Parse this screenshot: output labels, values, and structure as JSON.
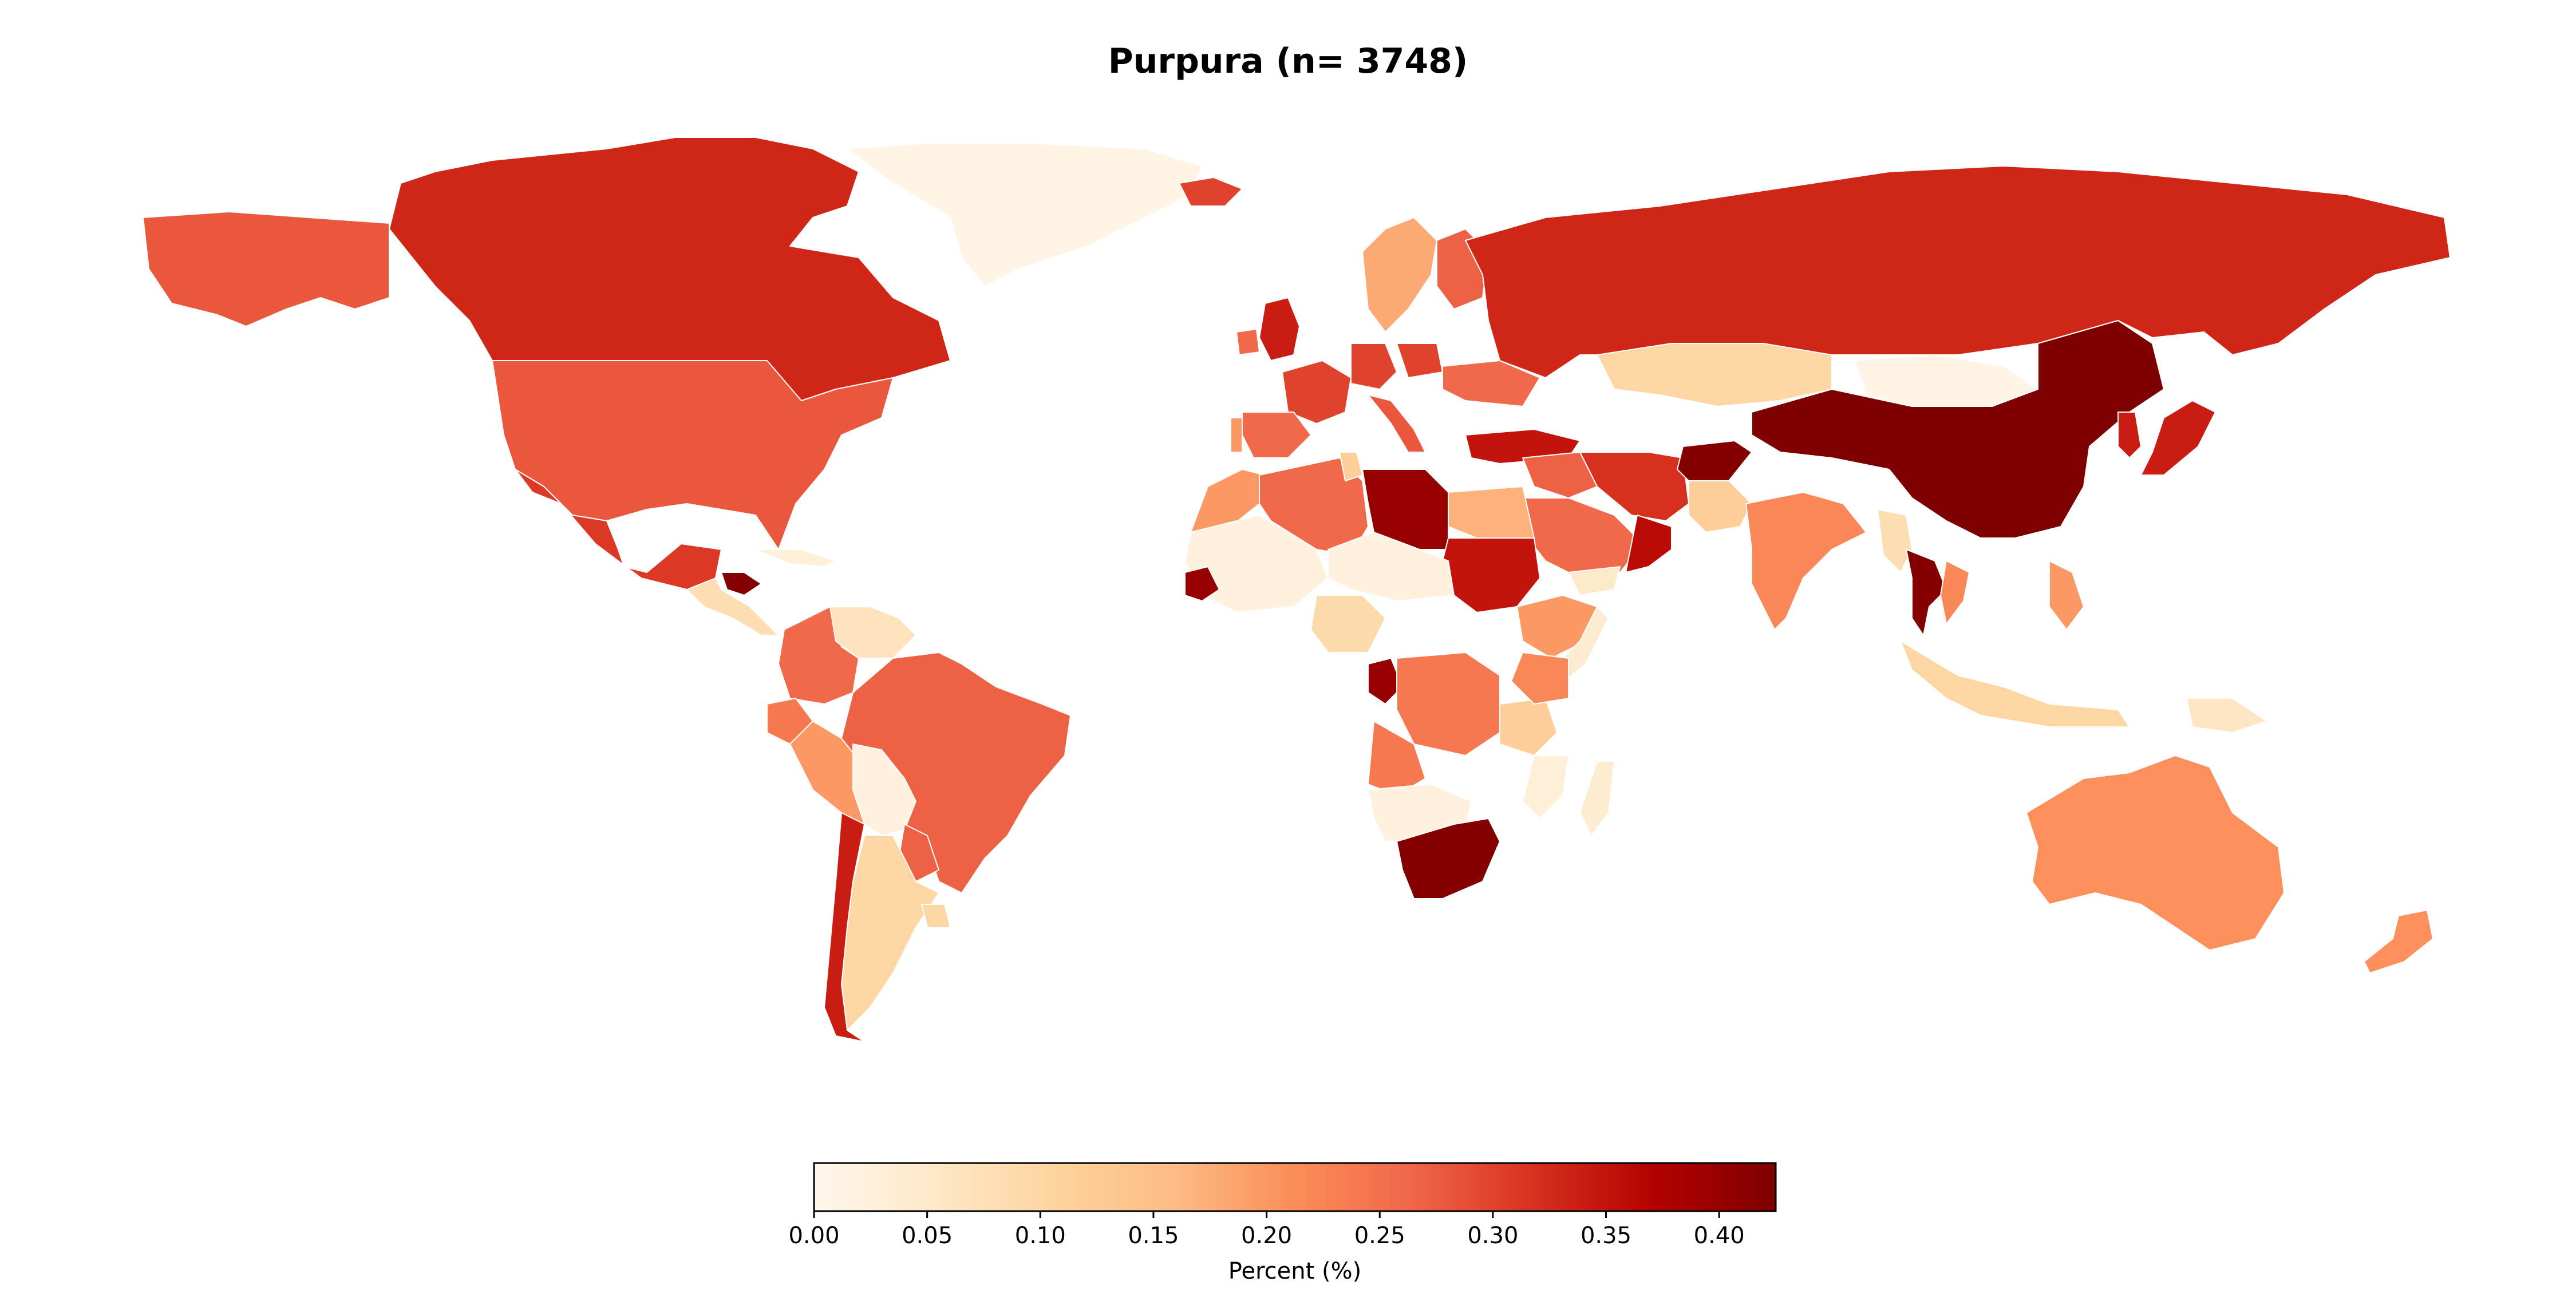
{
  "chart_data": {
    "type": "choropleth",
    "title": "Purpura (n= 3748)",
    "projection": "equirectangular",
    "colormap": "OrRd",
    "colorbar": {
      "label": "Percent (%)",
      "range": [
        0.0,
        0.425
      ],
      "ticks": [
        "0.00",
        "0.05",
        "0.10",
        "0.15",
        "0.20",
        "0.25",
        "0.30",
        "0.35",
        "0.40"
      ],
      "tick_values": [
        0.0,
        0.05,
        0.1,
        0.15,
        0.2,
        0.25,
        0.3,
        0.35,
        0.4
      ],
      "orientation": "horizontal",
      "placement": "bottom"
    },
    "regions": [
      {
        "name": "Canada",
        "value": 0.33
      },
      {
        "name": "Alaska (United States)",
        "value": 0.28
      },
      {
        "name": "United States",
        "value": 0.28
      },
      {
        "name": "Mexico",
        "value": 0.31
      },
      {
        "name": "Greenland",
        "value": 0.01
      },
      {
        "name": "Honduras",
        "value": 0.42
      },
      {
        "name": "Central America",
        "value": 0.08
      },
      {
        "name": "Cuba",
        "value": 0.03
      },
      {
        "name": "Colombia",
        "value": 0.26
      },
      {
        "name": "Venezuela",
        "value": 0.07
      },
      {
        "name": "Ecuador",
        "value": 0.24
      },
      {
        "name": "Peru",
        "value": 0.2
      },
      {
        "name": "Brazil",
        "value": 0.27
      },
      {
        "name": "Bolivia",
        "value": 0.02
      },
      {
        "name": "Paraguay",
        "value": 0.27
      },
      {
        "name": "Argentina",
        "value": 0.1
      },
      {
        "name": "Chile",
        "value": 0.34
      },
      {
        "name": "Uruguay",
        "value": 0.1
      },
      {
        "name": "Iceland",
        "value": 0.3
      },
      {
        "name": "United Kingdom",
        "value": 0.34
      },
      {
        "name": "Ireland",
        "value": 0.26
      },
      {
        "name": "France",
        "value": 0.3
      },
      {
        "name": "Spain",
        "value": 0.26
      },
      {
        "name": "Portugal",
        "value": 0.2
      },
      {
        "name": "Germany",
        "value": 0.3
      },
      {
        "name": "Scandinavia",
        "value": 0.18
      },
      {
        "name": "Finland",
        "value": 0.27
      },
      {
        "name": "Poland",
        "value": 0.3
      },
      {
        "name": "Ukraine",
        "value": 0.26
      },
      {
        "name": "Italy",
        "value": 0.28
      },
      {
        "name": "Turkey",
        "value": 0.35
      },
      {
        "name": "Russia",
        "value": 0.33
      },
      {
        "name": "Kazakhstan",
        "value": 0.1
      },
      {
        "name": "Mongolia",
        "value": 0.01
      },
      {
        "name": "China",
        "value": 0.425
      },
      {
        "name": "Japan",
        "value": 0.34
      },
      {
        "name": "Korea",
        "value": 0.34
      },
      {
        "name": "Iran",
        "value": 0.32
      },
      {
        "name": "Afghanistan",
        "value": 0.42
      },
      {
        "name": "Pakistan",
        "value": 0.12
      },
      {
        "name": "India",
        "value": 0.22
      },
      {
        "name": "Iraq / Syria",
        "value": 0.27
      },
      {
        "name": "Saudi Arabia",
        "value": 0.26
      },
      {
        "name": "Oman",
        "value": 0.36
      },
      {
        "name": "Yemen",
        "value": 0.05
      },
      {
        "name": "Myanmar",
        "value": 0.08
      },
      {
        "name": "Thailand",
        "value": 0.42
      },
      {
        "name": "Vietnam",
        "value": 0.22
      },
      {
        "name": "Philippines",
        "value": 0.2
      },
      {
        "name": "Indonesia",
        "value": 0.1
      },
      {
        "name": "Papua New Guinea",
        "value": 0.06
      },
      {
        "name": "Australia",
        "value": 0.21
      },
      {
        "name": "New Zealand",
        "value": 0.21
      },
      {
        "name": "Morocco",
        "value": 0.2
      },
      {
        "name": "Algeria",
        "value": 0.26
      },
      {
        "name": "Tunisia",
        "value": 0.12
      },
      {
        "name": "Libya",
        "value": 0.4
      },
      {
        "name": "Egypt",
        "value": 0.17
      },
      {
        "name": "Sudan",
        "value": 0.35
      },
      {
        "name": "Ethiopia",
        "value": 0.2
      },
      {
        "name": "Somalia",
        "value": 0.04
      },
      {
        "name": "Mauritania / Mali",
        "value": 0.02
      },
      {
        "name": "Niger / Chad",
        "value": 0.02
      },
      {
        "name": "Senegal",
        "value": 0.4
      },
      {
        "name": "Nigeria",
        "value": 0.09
      },
      {
        "name": "Gabon",
        "value": 0.4
      },
      {
        "name": "DR Congo",
        "value": 0.24
      },
      {
        "name": "Angola",
        "value": 0.24
      },
      {
        "name": "Tanzania",
        "value": 0.12
      },
      {
        "name": "Kenya",
        "value": 0.22
      },
      {
        "name": "Mozambique",
        "value": 0.03
      },
      {
        "name": "Namibia / Botswana",
        "value": 0.02
      },
      {
        "name": "South Africa",
        "value": 0.42
      },
      {
        "name": "Madagascar",
        "value": 0.04
      }
    ]
  }
}
